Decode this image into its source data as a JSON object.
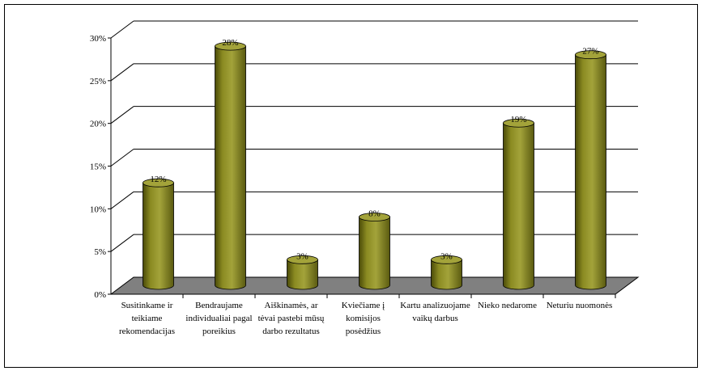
{
  "chart_data": {
    "type": "bar",
    "categories": [
      "Susitinkame ir teikiame rekomendacijas",
      "Bendraujame individualiai pagal poreikius",
      "Aiškinamės, ar tėvai pastebi mūsų darbo rezultatus",
      "Kviečiame į komisijos posėdžius",
      "Kartu analizuojame vaikų darbus",
      "Nieko nedarome",
      "Neturiu nuomonės"
    ],
    "values": [
      12,
      28,
      3,
      8,
      3,
      19,
      27
    ],
    "value_labels": [
      "12%",
      "28%",
      "3%",
      "8%",
      "3%",
      "19%",
      "27%"
    ],
    "color": "#8b8b22",
    "ylim": [
      0,
      30
    ],
    "yticks": [
      {
        "value": 0,
        "label": "0%"
      },
      {
        "value": 5,
        "label": "5%"
      },
      {
        "value": 10,
        "label": "10%"
      },
      {
        "value": 15,
        "label": "15%"
      },
      {
        "value": 20,
        "label": "20%"
      },
      {
        "value": 25,
        "label": "25%"
      },
      {
        "value": 30,
        "label": "30%"
      }
    ],
    "grid": true
  }
}
